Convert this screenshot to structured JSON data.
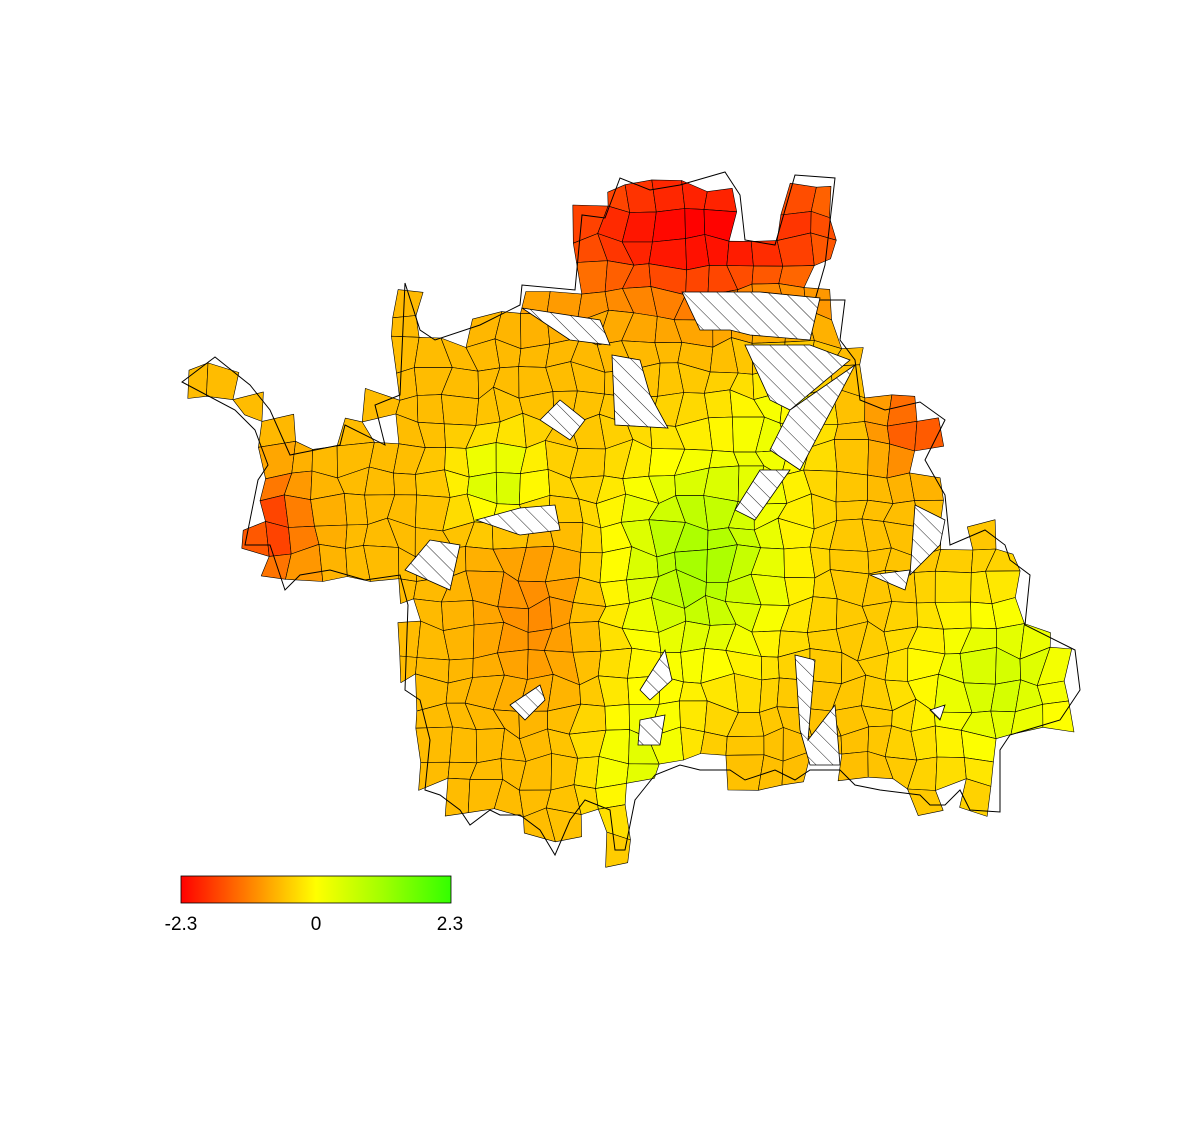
{
  "legend": {
    "min_label": "-2.3",
    "mid_label": "0",
    "max_label": "2.3",
    "colors": [
      "#ff0000",
      "#ff8000",
      "#ffff00",
      "#80ff00",
      "#33ff00"
    ]
  },
  "map": {
    "no_data_pattern": "hatched"
  }
}
